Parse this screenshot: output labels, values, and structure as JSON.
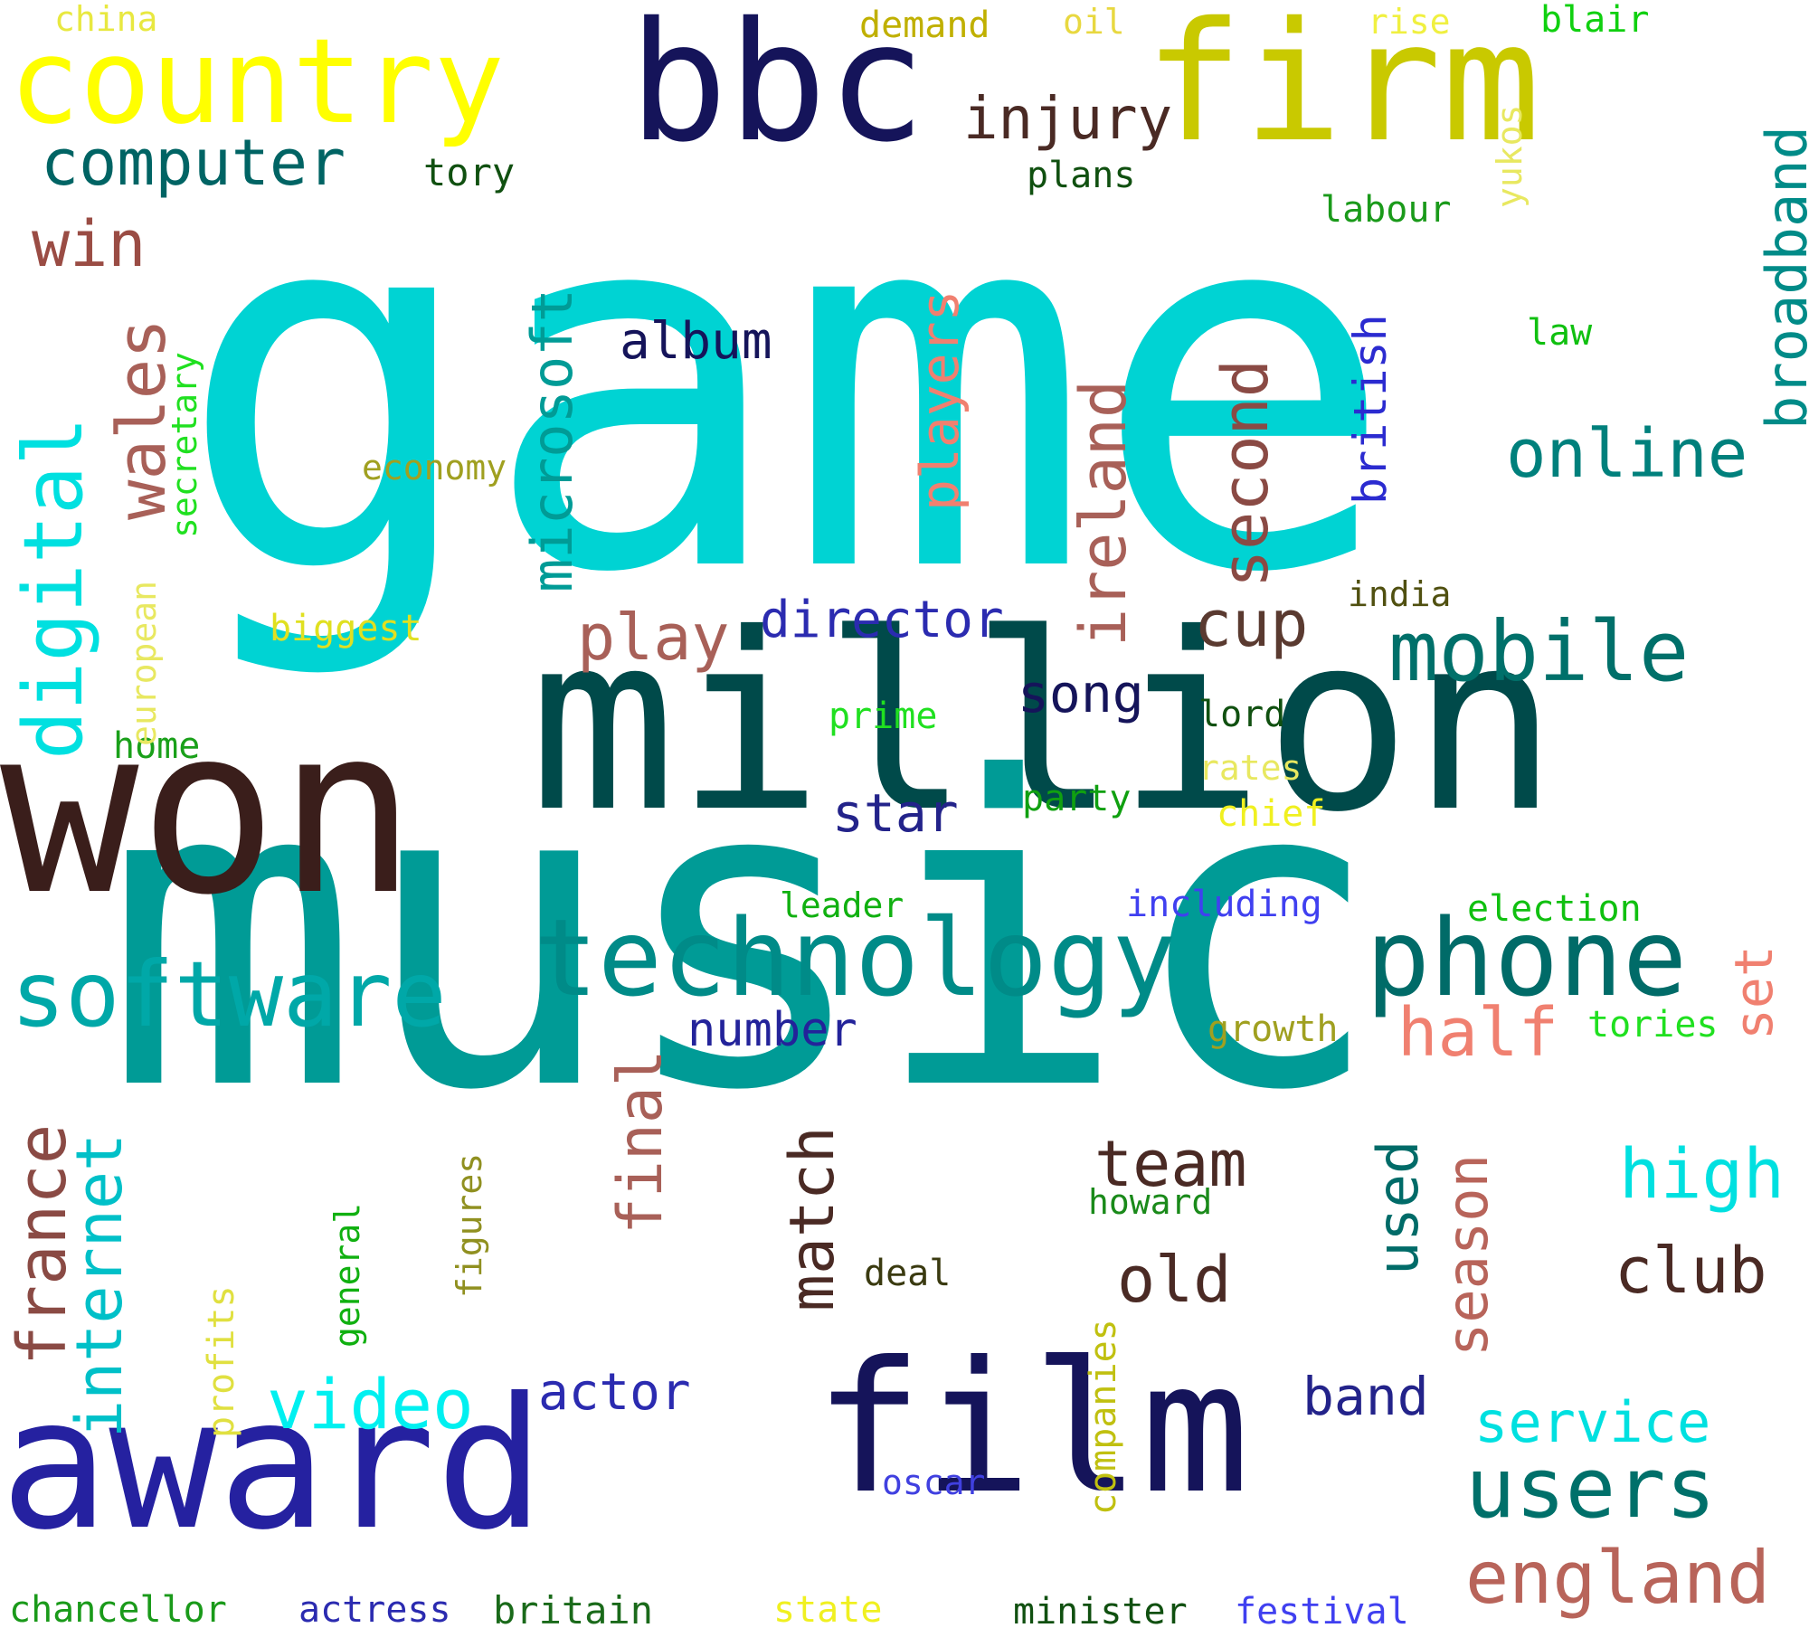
{
  "words": [
    {
      "text": "game",
      "color": "#00d3d3",
      "orientation": "horizontal"
    },
    {
      "text": "music",
      "color": "#009b96",
      "orientation": "horizontal"
    },
    {
      "text": "million",
      "color": "#004a4a",
      "orientation": "horizontal"
    },
    {
      "text": "won",
      "color": "#3a1e1b",
      "orientation": "horizontal"
    },
    {
      "text": "award",
      "color": "#2521a0",
      "orientation": "horizontal"
    },
    {
      "text": "film",
      "color": "#15145a",
      "orientation": "horizontal"
    },
    {
      "text": "bbc",
      "color": "#15145a",
      "orientation": "horizontal"
    },
    {
      "text": "firm",
      "color": "#c9c900",
      "orientation": "horizontal"
    },
    {
      "text": "country",
      "color": "#ffff00",
      "orientation": "horizontal"
    },
    {
      "text": "technology",
      "color": "#008b88",
      "orientation": "horizontal"
    },
    {
      "text": "phone",
      "color": "#006b68",
      "orientation": "horizontal"
    },
    {
      "text": "software",
      "color": "#00a8a8",
      "orientation": "horizontal"
    },
    {
      "text": "mobile",
      "color": "#00706a",
      "orientation": "horizontal"
    },
    {
      "text": "users",
      "color": "#00706a",
      "orientation": "horizontal"
    },
    {
      "text": "england",
      "color": "#b8645a",
      "orientation": "horizontal"
    },
    {
      "text": "online",
      "color": "#00807c",
      "orientation": "horizontal"
    },
    {
      "text": "computer",
      "color": "#006464",
      "orientation": "horizontal"
    },
    {
      "text": "injury",
      "color": "#4a2a24",
      "orientation": "horizontal"
    },
    {
      "text": "win",
      "color": "#9a4c44",
      "orientation": "horizontal"
    },
    {
      "text": "album",
      "color": "#15145a",
      "orientation": "horizontal"
    },
    {
      "text": "play",
      "color": "#a86058",
      "orientation": "horizontal"
    },
    {
      "text": "director",
      "color": "#2b2bb0",
      "orientation": "horizontal"
    },
    {
      "text": "cup",
      "color": "#5a3a30",
      "orientation": "horizontal"
    },
    {
      "text": "song",
      "color": "#15145a",
      "orientation": "horizontal"
    },
    {
      "text": "star",
      "color": "#23238a",
      "orientation": "horizontal"
    },
    {
      "text": "half",
      "color": "#f08070",
      "orientation": "horizontal"
    },
    {
      "text": "number",
      "color": "#23239a",
      "orientation": "horizontal"
    },
    {
      "text": "team",
      "color": "#4a2a24",
      "orientation": "horizontal"
    },
    {
      "text": "old",
      "color": "#4a2a24",
      "orientation": "horizontal"
    },
    {
      "text": "club",
      "color": "#4a2a24",
      "orientation": "horizontal"
    },
    {
      "text": "high",
      "color": "#00e0e0",
      "orientation": "horizontal"
    },
    {
      "text": "video",
      "color": "#00f0f0",
      "orientation": "horizontal"
    },
    {
      "text": "actor",
      "color": "#2b2bb0",
      "orientation": "horizontal"
    },
    {
      "text": "band",
      "color": "#23238a",
      "orientation": "horizontal"
    },
    {
      "text": "service",
      "color": "#00e0e0",
      "orientation": "horizontal"
    },
    {
      "text": "deal",
      "color": "#3a3a10",
      "orientation": "horizontal"
    },
    {
      "text": "howard",
      "color": "#1a8a1a",
      "orientation": "horizontal"
    },
    {
      "text": "oscar",
      "color": "#4040e0",
      "orientation": "horizontal"
    },
    {
      "text": "china",
      "color": "#e8e840",
      "orientation": "horizontal"
    },
    {
      "text": "demand",
      "color": "#c0b000",
      "orientation": "horizontal"
    },
    {
      "text": "oil",
      "color": "#e8d840",
      "orientation": "horizontal"
    },
    {
      "text": "rise",
      "color": "#f0f040",
      "orientation": "horizontal"
    },
    {
      "text": "blair",
      "color": "#10d010",
      "orientation": "horizontal"
    },
    {
      "text": "tory",
      "color": "#105010",
      "orientation": "horizontal"
    },
    {
      "text": "plans",
      "color": "#105010",
      "orientation": "horizontal"
    },
    {
      "text": "labour",
      "color": "#1a9a1a",
      "orientation": "horizontal"
    },
    {
      "text": "law",
      "color": "#10c010",
      "orientation": "horizontal"
    },
    {
      "text": "economy",
      "color": "#a0a020",
      "orientation": "horizontal"
    },
    {
      "text": "biggest",
      "color": "#e0e020",
      "orientation": "horizontal"
    },
    {
      "text": "india",
      "color": "#505010",
      "orientation": "horizontal"
    },
    {
      "text": "home",
      "color": "#1aa01a",
      "orientation": "horizontal"
    },
    {
      "text": "prime",
      "color": "#20e020",
      "orientation": "horizontal"
    },
    {
      "text": "lord",
      "color": "#105010",
      "orientation": "horizontal"
    },
    {
      "text": "rates",
      "color": "#e8e860",
      "orientation": "horizontal"
    },
    {
      "text": "party",
      "color": "#10a010",
      "orientation": "horizontal"
    },
    {
      "text": "chief",
      "color": "#f0f020",
      "orientation": "horizontal"
    },
    {
      "text": "leader",
      "color": "#10b010",
      "orientation": "horizontal"
    },
    {
      "text": "including",
      "color": "#4040f0",
      "orientation": "horizontal"
    },
    {
      "text": "election",
      "color": "#10c010",
      "orientation": "horizontal"
    },
    {
      "text": "growth",
      "color": "#a0a020",
      "orientation": "horizontal"
    },
    {
      "text": "tories",
      "color": "#20e020",
      "orientation": "horizontal"
    },
    {
      "text": "chancellor",
      "color": "#1a9a1a",
      "orientation": "horizontal"
    },
    {
      "text": "actress",
      "color": "#2b2bb0",
      "orientation": "horizontal"
    },
    {
      "text": "britain",
      "color": "#1a6a1a",
      "orientation": "horizontal"
    },
    {
      "text": "state",
      "color": "#f0f020",
      "orientation": "horizontal"
    },
    {
      "text": "minister",
      "color": "#105010",
      "orientation": "horizontal"
    },
    {
      "text": "festival",
      "color": "#4040f0",
      "orientation": "horizontal"
    },
    {
      "text": "digital",
      "color": "#00e0e0",
      "orientation": "vertical"
    },
    {
      "text": "wales",
      "color": "#a86058",
      "orientation": "vertical"
    },
    {
      "text": "secretary",
      "color": "#20e020",
      "orientation": "vertical"
    },
    {
      "text": "european",
      "color": "#e8e860",
      "orientation": "vertical"
    },
    {
      "text": "microsoft",
      "color": "#009b96",
      "orientation": "vertical"
    },
    {
      "text": "players",
      "color": "#f08070",
      "orientation": "vertical"
    },
    {
      "text": "ireland",
      "color": "#a86058",
      "orientation": "vertical"
    },
    {
      "text": "second",
      "color": "#8a4a44",
      "orientation": "vertical"
    },
    {
      "text": "british",
      "color": "#2b2bd0",
      "orientation": "vertical"
    },
    {
      "text": "broadband",
      "color": "#008b88",
      "orientation": "vertical"
    },
    {
      "text": "yukos",
      "color": "#e8e860",
      "orientation": "vertical"
    },
    {
      "text": "france",
      "color": "#8a4a44",
      "orientation": "vertical"
    },
    {
      "text": "internet",
      "color": "#00c0c8",
      "orientation": "vertical"
    },
    {
      "text": "final",
      "color": "#a86058",
      "orientation": "vertical"
    },
    {
      "text": "match",
      "color": "#4a2a24",
      "orientation": "vertical"
    },
    {
      "text": "used",
      "color": "#006b68",
      "orientation": "vertical"
    },
    {
      "text": "season",
      "color": "#b8645a",
      "orientation": "vertical"
    },
    {
      "text": "set",
      "color": "#f08070",
      "orientation": "vertical"
    },
    {
      "text": "figures",
      "color": "#909020",
      "orientation": "vertical"
    },
    {
      "text": "general",
      "color": "#10b010",
      "orientation": "vertical"
    },
    {
      "text": "profits",
      "color": "#e0e040",
      "orientation": "vertical"
    },
    {
      "text": "companies",
      "color": "#c0c010",
      "orientation": "vertical"
    }
  ]
}
